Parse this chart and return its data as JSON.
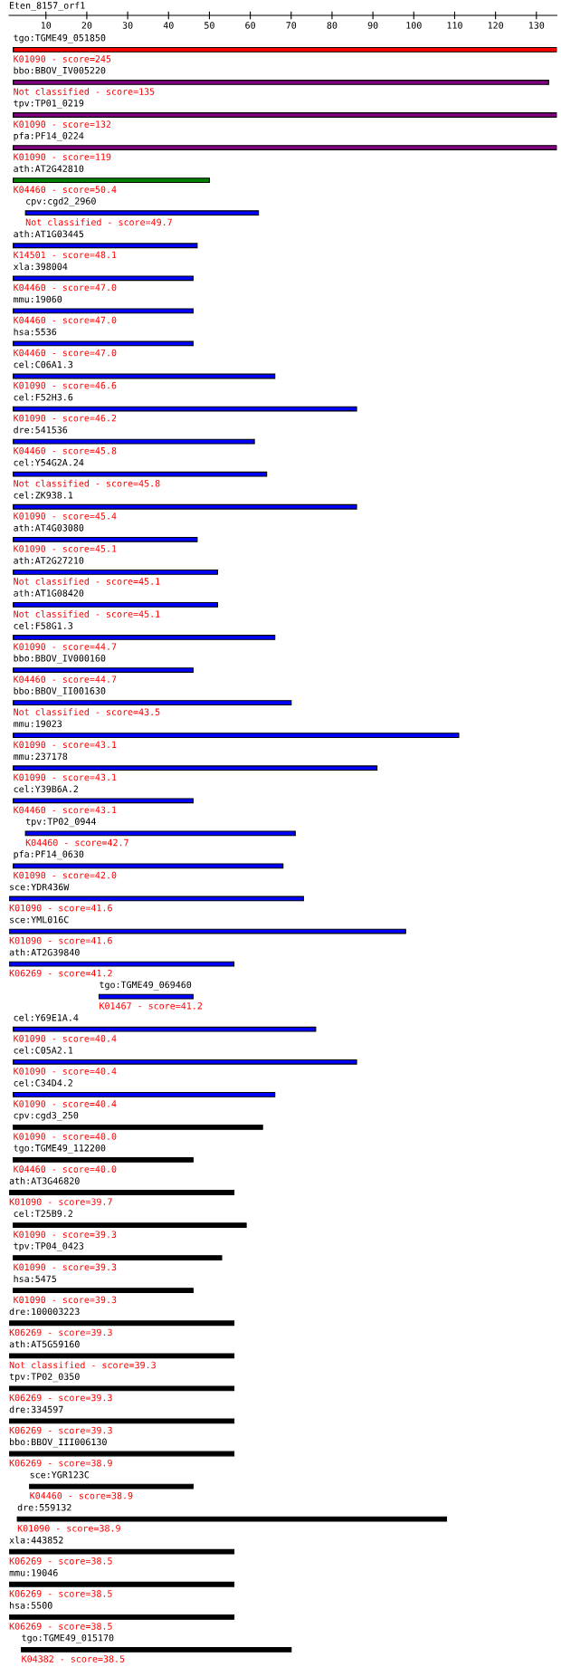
{
  "chart_data": {
    "type": "bar",
    "orientation": "horizontal",
    "title": "Eten_8157_orf1",
    "xlim": [
      1,
      135
    ],
    "xticks": [
      10,
      20,
      30,
      40,
      50,
      60,
      70,
      80,
      90,
      100,
      110,
      120,
      130
    ],
    "categories": [
      "tgo:TGME49_051850",
      "bbo:BBOV_IV005220",
      "tpv:TP01_0219",
      "pfa:PF14_0224",
      "ath:AT2G42810",
      "cpv:cgd2_2960",
      "ath:AT1G03445",
      "xla:398004",
      "mmu:19060",
      "hsa:5536",
      "cel:C06A1.3",
      "cel:F52H3.6",
      "dre:541536",
      "cel:Y54G2A.24",
      "cel:ZK938.1",
      "ath:AT4G03080",
      "ath:AT2G27210",
      "ath:AT1G08420",
      "cel:F58G1.3",
      "bbo:BBOV_IV000160",
      "bbo:BBOV_II001630",
      "mmu:19023",
      "mmu:237178",
      "cel:Y39B6A.2",
      "tpv:TP02_0944",
      "pfa:PF14_0630",
      "sce:YDR436W",
      "sce:YML016C",
      "ath:AT2G39840",
      "tgo:TGME49_069460",
      "cel:Y69E1A.4",
      "cel:C05A2.1",
      "cel:C34D4.2",
      "cpv:cgd3_250",
      "tgo:TGME49_112200",
      "ath:AT3G46820",
      "cel:T25B9.2",
      "tpv:TP04_0423",
      "hsa:5475",
      "dre:100003223",
      "ath:AT5G59160",
      "tpv:TP02_0350",
      "dre:334597",
      "bbo:BBOV_III006130",
      "sce:YGR123C",
      "dre:559132",
      "xla:443852",
      "mmu:19046",
      "hsa:5500",
      "tgo:TGME49_015170"
    ],
    "base": [
      2,
      2,
      2,
      2,
      2,
      5,
      2,
      2,
      2,
      2,
      2,
      2,
      2,
      2,
      2,
      2,
      2,
      2,
      2,
      2,
      2,
      2,
      2,
      2,
      5,
      2,
      1,
      1,
      1,
      23,
      2,
      2,
      2,
      2,
      2,
      1,
      2,
      2,
      2,
      1,
      1,
      1,
      1,
      1,
      6,
      3,
      1,
      1,
      1,
      4
    ],
    "values": [
      133,
      131,
      133,
      133,
      48,
      57,
      45,
      44,
      44,
      44,
      64,
      84,
      59,
      62,
      84,
      45,
      50,
      50,
      64,
      44,
      68,
      109,
      89,
      44,
      66,
      66,
      72,
      97,
      55,
      23,
      74,
      84,
      64,
      61,
      44,
      55,
      57,
      51,
      44,
      55,
      55,
      55,
      55,
      55,
      40,
      105,
      55,
      55,
      55,
      66
    ],
    "colors": [
      "#ff0000",
      "#800080",
      "#800080",
      "#800080",
      "#008000",
      "#0000ff",
      "#0000ff",
      "#0000ff",
      "#0000ff",
      "#0000ff",
      "#0000ff",
      "#0000ff",
      "#0000ff",
      "#0000ff",
      "#0000ff",
      "#0000ff",
      "#0000ff",
      "#0000ff",
      "#0000ff",
      "#0000ff",
      "#0000ff",
      "#0000ff",
      "#0000ff",
      "#0000ff",
      "#0000ff",
      "#0000ff",
      "#0000ff",
      "#0000ff",
      "#0000ff",
      "#0000ff",
      "#0000ff",
      "#0000ff",
      "#0000ff",
      "#000000",
      "#000000",
      "#000000",
      "#000000",
      "#000000",
      "#000000",
      "#000000",
      "#000000",
      "#000000",
      "#000000",
      "#000000",
      "#000000",
      "#000000",
      "#000000",
      "#000000",
      "#000000",
      "#000000"
    ],
    "annotations": [
      {
        "text": "K01090 - score=245",
        "x": 2,
        "y": "tgo:TGME49_051850"
      },
      {
        "text": "Not classified - score=135",
        "x": 2,
        "y": "bbo:BBOV_IV005220"
      },
      {
        "text": "K01090 - score=132",
        "x": 2,
        "y": "tpv:TP01_0219"
      },
      {
        "text": "K01090 - score=119",
        "x": 2,
        "y": "pfa:PF14_0224"
      },
      {
        "text": "K04460 - score=50.4",
        "x": 2,
        "y": "ath:AT2G42810"
      },
      {
        "text": "Not classified - score=49.7",
        "x": 5,
        "y": "cpv:cgd2_2960"
      },
      {
        "text": "K14501 - score=48.1",
        "x": 2,
        "y": "ath:AT1G03445"
      },
      {
        "text": "K04460 - score=47.0",
        "x": 2,
        "y": "xla:398004"
      },
      {
        "text": "K04460 - score=47.0",
        "x": 2,
        "y": "mmu:19060"
      },
      {
        "text": "K04460 - score=47.0",
        "x": 2,
        "y": "hsa:5536"
      },
      {
        "text": "K01090 - score=46.6",
        "x": 2,
        "y": "cel:C06A1.3"
      },
      {
        "text": "K01090 - score=46.2",
        "x": 2,
        "y": "cel:F52H3.6"
      },
      {
        "text": "K04460 - score=45.8",
        "x": 2,
        "y": "dre:541536"
      },
      {
        "text": "Not classified - score=45.8",
        "x": 2,
        "y": "cel:Y54G2A.24"
      },
      {
        "text": "K01090 - score=45.4",
        "x": 2,
        "y": "cel:ZK938.1"
      },
      {
        "text": "K01090 - score=45.1",
        "x": 2,
        "y": "ath:AT4G03080"
      },
      {
        "text": "Not classified - score=45.1",
        "x": 2,
        "y": "ath:AT2G27210"
      },
      {
        "text": "Not classified - score=45.1",
        "x": 2,
        "y": "ath:AT1G08420"
      },
      {
        "text": "K01090 - score=44.7",
        "x": 2,
        "y": "cel:F58G1.3"
      },
      {
        "text": "K04460 - score=44.7",
        "x": 2,
        "y": "bbo:BBOV_IV000160"
      },
      {
        "text": "Not classified - score=43.5",
        "x": 2,
        "y": "bbo:BBOV_II001630"
      },
      {
        "text": "K01090 - score=43.1",
        "x": 2,
        "y": "mmu:19023"
      },
      {
        "text": "K01090 - score=43.1",
        "x": 2,
        "y": "mmu:237178"
      },
      {
        "text": "K04460 - score=43.1",
        "x": 2,
        "y": "cel:Y39B6A.2"
      },
      {
        "text": "K04460 - score=42.7",
        "x": 5,
        "y": "tpv:TP02_0944"
      },
      {
        "text": "K01090 - score=42.0",
        "x": 2,
        "y": "pfa:PF14_0630"
      },
      {
        "text": "K01090 - score=41.6",
        "x": 1,
        "y": "sce:YDR436W"
      },
      {
        "text": "K01090 - score=41.6",
        "x": 1,
        "y": "sce:YML016C"
      },
      {
        "text": "K06269 - score=41.2",
        "x": 1,
        "y": "ath:AT2G39840"
      },
      {
        "text": "K01467 - score=41.2",
        "x": 23,
        "y": "tgo:TGME49_069460"
      },
      {
        "text": "K01090 - score=40.4",
        "x": 2,
        "y": "cel:Y69E1A.4"
      },
      {
        "text": "K01090 - score=40.4",
        "x": 2,
        "y": "cel:C05A2.1"
      },
      {
        "text": "K01090 - score=40.4",
        "x": 2,
        "y": "cel:C34D4.2"
      },
      {
        "text": "K01090 - score=40.0",
        "x": 2,
        "y": "cpv:cgd3_250"
      },
      {
        "text": "K04460 - score=40.0",
        "x": 2,
        "y": "tgo:TGME49_112200"
      },
      {
        "text": "K01090 - score=39.7",
        "x": 1,
        "y": "ath:AT3G46820"
      },
      {
        "text": "K01090 - score=39.3",
        "x": 2,
        "y": "cel:T25B9.2"
      },
      {
        "text": "K01090 - score=39.3",
        "x": 2,
        "y": "tpv:TP04_0423"
      },
      {
        "text": "K01090 - score=39.3",
        "x": 2,
        "y": "hsa:5475"
      },
      {
        "text": "K06269 - score=39.3",
        "x": 1,
        "y": "dre:100003223"
      },
      {
        "text": "Not classified - score=39.3",
        "x": 1,
        "y": "ath:AT5G59160"
      },
      {
        "text": "K06269 - score=39.3",
        "x": 1,
        "y": "tpv:TP02_0350"
      },
      {
        "text": "K06269 - score=39.3",
        "x": 1,
        "y": "dre:334597"
      },
      {
        "text": "K06269 - score=38.9",
        "x": 1,
        "y": "bbo:BBOV_III006130"
      },
      {
        "text": "K04460 - score=38.9",
        "x": 6,
        "y": "sce:YGR123C"
      },
      {
        "text": "K01090 - score=38.9",
        "x": 3,
        "y": "dre:559132"
      },
      {
        "text": "K06269 - score=38.5",
        "x": 1,
        "y": "xla:443852"
      },
      {
        "text": "K06269 - score=38.5",
        "x": 1,
        "y": "mmu:19046"
      },
      {
        "text": "K06269 - score=38.5",
        "x": 1,
        "y": "hsa:5500"
      },
      {
        "text": "K04382 - score=38.5",
        "x": 4,
        "y": "tgo:TGME49_015170"
      }
    ]
  }
}
